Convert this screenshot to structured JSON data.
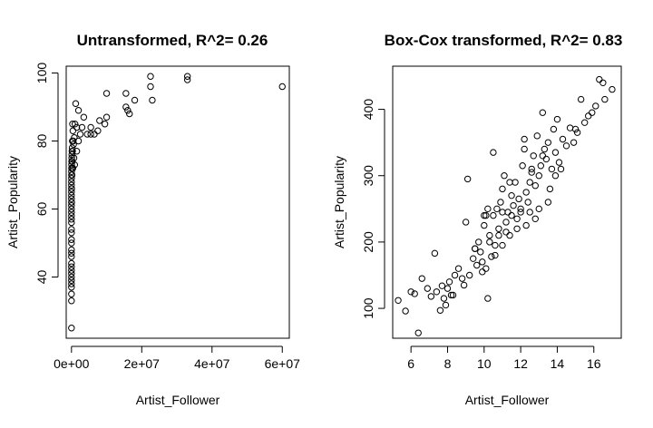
{
  "chart_data": [
    {
      "type": "scatter",
      "title": "Untransformed, R^2= 0.26",
      "xlabel": "Artist_Follower",
      "ylabel": "Artist_Popularity",
      "xlim": [
        -1500000,
        62000000
      ],
      "ylim": [
        22,
        102
      ],
      "xticks": [
        0,
        20000000,
        40000000,
        60000000
      ],
      "xtick_labels": [
        "0e+00",
        "2e+07",
        "4e+07",
        "6e+07"
      ],
      "yticks": [
        40,
        60,
        80,
        100
      ],
      "ytick_labels": [
        "40",
        "60",
        "80",
        "100"
      ],
      "grid": false,
      "marker": "open-circle",
      "points": [
        [
          33000000,
          99
        ],
        [
          33000000,
          98
        ],
        [
          60000000,
          96
        ],
        [
          22500000,
          99
        ],
        [
          22500000,
          96
        ],
        [
          23000000,
          92
        ],
        [
          18000000,
          92
        ],
        [
          15500000,
          94
        ],
        [
          15500000,
          90
        ],
        [
          16000000,
          89
        ],
        [
          16500000,
          88
        ],
        [
          10000000,
          94
        ],
        [
          10000000,
          87
        ],
        [
          9500000,
          85
        ],
        [
          8000000,
          86
        ],
        [
          7500000,
          83
        ],
        [
          6500000,
          82
        ],
        [
          5500000,
          84
        ],
        [
          5500000,
          82
        ],
        [
          4500000,
          82
        ],
        [
          3500000,
          87
        ],
        [
          3000000,
          84
        ],
        [
          2500000,
          82
        ],
        [
          2000000,
          89
        ],
        [
          1500000,
          84
        ],
        [
          1200000,
          91
        ],
        [
          1000000,
          85
        ],
        [
          800000,
          81
        ],
        [
          600000,
          79
        ],
        [
          400000,
          83
        ],
        [
          300000,
          85
        ],
        [
          250000,
          80
        ],
        [
          200000,
          78
        ],
        [
          150000,
          77
        ],
        [
          100000,
          76
        ],
        [
          80000,
          75
        ],
        [
          60000,
          74
        ],
        [
          40000,
          73
        ],
        [
          30000,
          72
        ],
        [
          20000,
          71
        ],
        [
          10000,
          70
        ],
        [
          10000,
          69
        ],
        [
          0,
          68
        ],
        [
          0,
          67
        ],
        [
          0,
          66
        ],
        [
          0,
          65
        ],
        [
          0,
          64
        ],
        [
          0,
          63
        ],
        [
          0,
          62
        ],
        [
          0,
          61
        ],
        [
          0,
          60
        ],
        [
          0,
          59
        ],
        [
          0,
          58
        ],
        [
          0,
          57
        ],
        [
          0,
          56
        ],
        [
          0,
          54
        ],
        [
          0,
          53
        ],
        [
          0,
          51
        ],
        [
          0,
          50
        ],
        [
          0,
          48
        ],
        [
          0,
          47
        ],
        [
          0,
          46
        ],
        [
          0,
          44
        ],
        [
          0,
          43
        ],
        [
          0,
          42
        ],
        [
          0,
          41
        ],
        [
          0,
          40
        ],
        [
          0,
          39
        ],
        [
          0,
          38
        ],
        [
          0,
          37
        ],
        [
          0,
          35
        ],
        [
          0,
          33
        ],
        [
          0,
          25
        ],
        [
          100000,
          72
        ],
        [
          200000,
          74
        ],
        [
          300000,
          77
        ],
        [
          150000,
          70
        ],
        [
          500000,
          80
        ],
        [
          50000,
          66
        ],
        [
          50000,
          62
        ],
        [
          700000,
          75
        ],
        [
          900000,
          73
        ],
        [
          400000,
          72
        ],
        [
          1500000,
          77
        ],
        [
          2000000,
          80
        ]
      ]
    },
    {
      "type": "scatter",
      "title": "Box-Cox transformed, R^2= 0.83",
      "xlabel": "Artist_Follower",
      "ylabel": "Artist_Popularity",
      "xlim": [
        5.0,
        17.5
      ],
      "ylim": [
        55,
        465
      ],
      "xticks": [
        6,
        8,
        10,
        12,
        14,
        16
      ],
      "xtick_labels": [
        "6",
        "8",
        "10",
        "12",
        "14",
        "16"
      ],
      "yticks": [
        100,
        200,
        300,
        400
      ],
      "ytick_labels": [
        "100",
        "200",
        "300",
        "400"
      ],
      "grid": false,
      "marker": "open-circle",
      "points": [
        [
          5.3,
          112
        ],
        [
          5.7,
          96
        ],
        [
          6.0,
          125
        ],
        [
          6.2,
          122
        ],
        [
          6.4,
          63
        ],
        [
          6.6,
          145
        ],
        [
          6.9,
          130
        ],
        [
          7.1,
          118
        ],
        [
          7.3,
          183
        ],
        [
          7.4,
          125
        ],
        [
          7.6,
          97
        ],
        [
          7.7,
          134
        ],
        [
          7.8,
          115
        ],
        [
          7.9,
          105
        ],
        [
          8.0,
          130
        ],
        [
          8.1,
          140
        ],
        [
          8.3,
          120
        ],
        [
          8.4,
          150
        ],
        [
          8.6,
          160
        ],
        [
          8.8,
          145
        ],
        [
          9.0,
          230
        ],
        [
          9.1,
          295
        ],
        [
          9.2,
          150
        ],
        [
          9.4,
          175
        ],
        [
          9.5,
          190
        ],
        [
          9.6,
          165
        ],
        [
          9.7,
          200
        ],
        [
          9.8,
          185
        ],
        [
          9.9,
          155
        ],
        [
          10.0,
          225
        ],
        [
          10.1,
          240
        ],
        [
          10.2,
          115
        ],
        [
          10.3,
          210
        ],
        [
          10.4,
          178
        ],
        [
          10.5,
          335
        ],
        [
          10.6,
          195
        ],
        [
          10.7,
          250
        ],
        [
          10.8,
          220
        ],
        [
          10.9,
          260
        ],
        [
          11.0,
          280
        ],
        [
          11.1,
          300
        ],
        [
          11.2,
          230
        ],
        [
          11.3,
          245
        ],
        [
          11.4,
          210
        ],
        [
          11.5,
          270
        ],
        [
          11.6,
          255
        ],
        [
          11.7,
          290
        ],
        [
          11.8,
          235
        ],
        [
          11.9,
          265
        ],
        [
          12.0,
          250
        ],
        [
          12.1,
          315
        ],
        [
          12.2,
          340
        ],
        [
          12.3,
          275
        ],
        [
          12.4,
          260
        ],
        [
          12.5,
          290
        ],
        [
          12.6,
          305
        ],
        [
          12.7,
          330
        ],
        [
          12.8,
          285
        ],
        [
          12.9,
          360
        ],
        [
          13.0,
          300
        ],
        [
          13.1,
          315
        ],
        [
          13.2,
          395
        ],
        [
          13.3,
          340
        ],
        [
          13.4,
          325
        ],
        [
          13.5,
          350
        ],
        [
          13.6,
          280
        ],
        [
          13.7,
          310
        ],
        [
          13.8,
          370
        ],
        [
          13.9,
          335
        ],
        [
          14.0,
          385
        ],
        [
          14.1,
          320
        ],
        [
          14.3,
          355
        ],
        [
          14.5,
          345
        ],
        [
          14.7,
          372
        ],
        [
          14.9,
          350
        ],
        [
          15.1,
          365
        ],
        [
          15.3,
          415
        ],
        [
          15.5,
          380
        ],
        [
          15.7,
          390
        ],
        [
          15.9,
          395
        ],
        [
          16.1,
          405
        ],
        [
          16.3,
          445
        ],
        [
          16.5,
          440
        ],
        [
          16.6,
          415
        ],
        [
          17.0,
          430
        ],
        [
          10.0,
          240
        ],
        [
          10.2,
          250
        ],
        [
          10.5,
          240
        ],
        [
          11.0,
          245
        ],
        [
          11.5,
          240
        ],
        [
          12.0,
          245
        ],
        [
          12.5,
          245
        ],
        [
          9.5,
          190
        ],
        [
          10.3,
          200
        ],
        [
          10.8,
          210
        ],
        [
          11.2,
          215
        ],
        [
          11.8,
          220
        ],
        [
          12.3,
          225
        ],
        [
          12.8,
          235
        ],
        [
          13.0,
          250
        ],
        [
          13.5,
          260
        ],
        [
          9.9,
          170
        ],
        [
          10.6,
          180
        ],
        [
          11.4,
          290
        ],
        [
          12.6,
          310
        ],
        [
          13.2,
          330
        ],
        [
          13.9,
          300
        ],
        [
          12.2,
          355
        ],
        [
          11.0,
          195
        ],
        [
          10.1,
          160
        ],
        [
          8.9,
          135
        ],
        [
          8.2,
          120
        ],
        [
          14.2,
          310
        ],
        [
          15.0,
          370
        ]
      ]
    }
  ]
}
